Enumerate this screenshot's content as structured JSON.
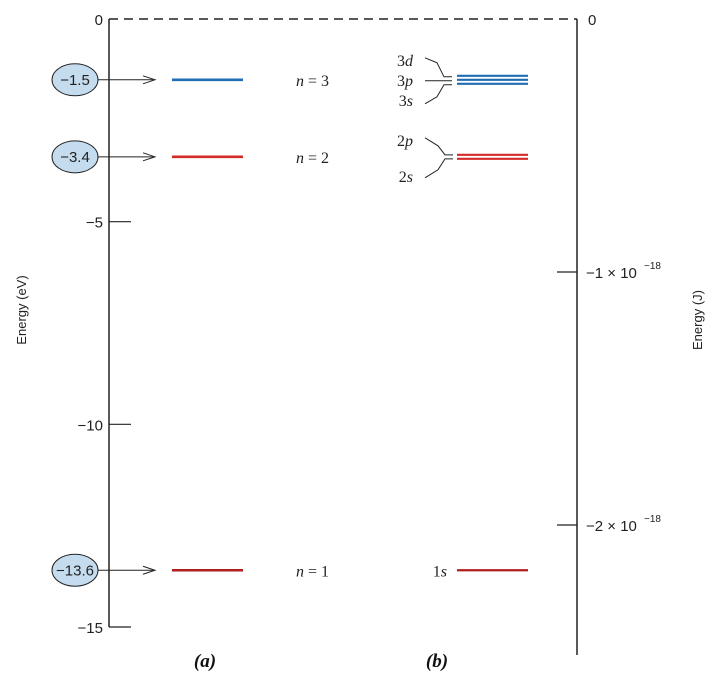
{
  "left_axis": {
    "label": "Energy (eV)",
    "ticks": [
      {
        "value": 0,
        "label": "0"
      },
      {
        "value": -5,
        "label": "−5"
      },
      {
        "value": -10,
        "label": "−10"
      },
      {
        "value": -15,
        "label": "−15"
      }
    ],
    "level_markers": [
      {
        "value": -1.5,
        "label": "−1.5"
      },
      {
        "value": -3.4,
        "label": "−3.4"
      },
      {
        "value": -13.6,
        "label": "−13.6"
      }
    ],
    "marker_fill": "#c5dcef"
  },
  "right_axis": {
    "label": "Energy (J)",
    "ticks": [
      {
        "value": 0,
        "label": "0"
      },
      {
        "value": -1e-18,
        "label": "−1 × 10",
        "exp": "−18"
      },
      {
        "value": -2e-18,
        "label": "−2 × 10",
        "exp": "−18"
      }
    ]
  },
  "panel_a": {
    "caption": "(a)",
    "levels": [
      {
        "n_label": "n",
        "eq": " = 3",
        "energy": -1.5,
        "color": "#1f6db5"
      },
      {
        "n_label": "n",
        "eq": " = 2",
        "energy": -3.4,
        "color": "#d42a2a"
      },
      {
        "n_label": "n",
        "eq": " = 1",
        "energy": -13.6,
        "color": "#b01e1e"
      }
    ]
  },
  "panel_b": {
    "caption": "(b)",
    "groups": [
      {
        "energy": -1.5,
        "color": "#1f6db5",
        "lines": 3,
        "labels": [
          {
            "num": "3",
            "l": "d"
          },
          {
            "num": "3",
            "l": "p"
          },
          {
            "num": "3",
            "l": "s"
          }
        ]
      },
      {
        "energy": -3.4,
        "color": "#d42a2a",
        "lines": 2,
        "labels": [
          {
            "num": "2",
            "l": "p"
          },
          {
            "num": "2",
            "l": "s"
          }
        ]
      },
      {
        "energy": -13.6,
        "color": "#b01e1e",
        "lines": 1,
        "labels": [
          {
            "num": "1",
            "l": "s"
          }
        ]
      }
    ]
  },
  "colors": {
    "axis": "#222222",
    "n3": "#1f6db5",
    "n2": "#d42a2a",
    "n1": "#b01e1e"
  }
}
